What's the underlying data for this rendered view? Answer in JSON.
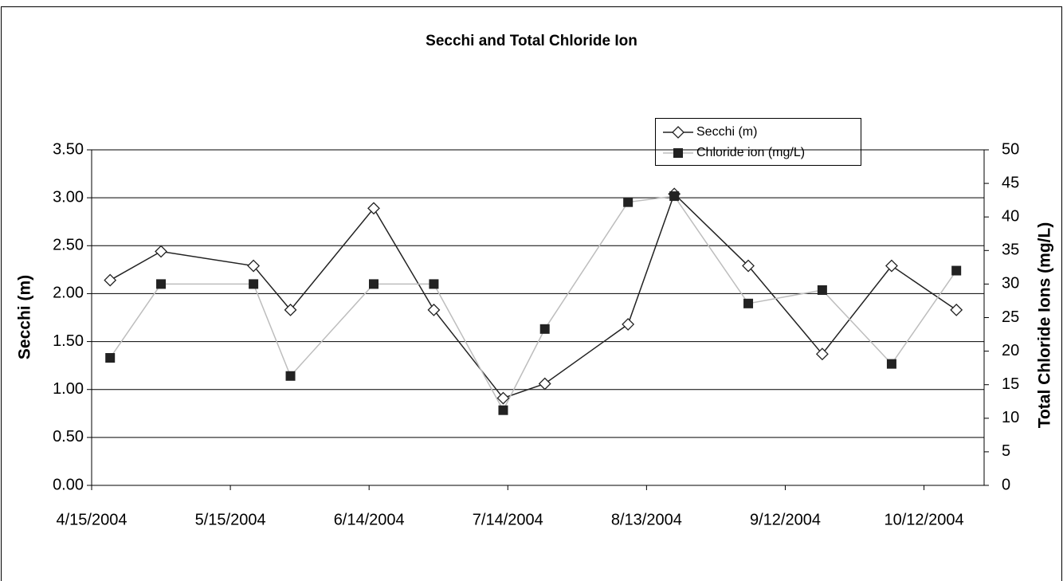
{
  "chart_data": {
    "type": "line",
    "title": "Secchi and Total Chloride Ion",
    "y_label": "Secchi (m)",
    "y2_label": "Total Chloride Ions (mg/L)",
    "x": [
      "2004-04-19",
      "2004-04-30",
      "2004-05-20",
      "2004-05-28",
      "2004-06-15",
      "2004-06-28",
      "2004-07-13",
      "2004-07-22",
      "2004-08-09",
      "2004-08-19",
      "2004-09-04",
      "2004-09-20",
      "2004-10-05",
      "2004-10-19"
    ],
    "series": [
      {
        "name": "Secchi (m)",
        "color": "#222222",
        "marker": "diamond",
        "marker_color": "#ffffff",
        "values": [
          2.14,
          2.44,
          2.29,
          1.83,
          2.89,
          1.83,
          0.91,
          1.06,
          1.68,
          3.04,
          2.29,
          1.37,
          2.29,
          1.83
        ]
      },
      {
        "name": "Chloride ion (mg/L)",
        "color": "#bdbdbd",
        "marker": "square",
        "marker_color": "#222222",
        "axis": "y2",
        "values": [
          19,
          30,
          30,
          16.3,
          30,
          30,
          11.2,
          23.3,
          42.2,
          43.1,
          27.1,
          29.1,
          18.1,
          32
        ]
      }
    ],
    "xlim": [
      "2004-04-15",
      "2004-10-25"
    ],
    "xticks": [
      {
        "value": "2004-04-15",
        "label": "4/15/2004"
      },
      {
        "value": "2004-05-15",
        "label": "5/15/2004"
      },
      {
        "value": "2004-06-14",
        "label": "6/14/2004"
      },
      {
        "value": "2004-07-14",
        "label": "7/14/2004"
      },
      {
        "value": "2004-08-13",
        "label": "8/13/2004"
      },
      {
        "value": "2004-09-12",
        "label": "9/12/2004"
      },
      {
        "value": "2004-10-12",
        "label": "10/12/2004"
      }
    ],
    "ylim": [
      0,
      3.5
    ],
    "yticks": [
      {
        "value": 0,
        "label": "0.00"
      },
      {
        "value": 0.5,
        "label": "0.50"
      },
      {
        "value": 1,
        "label": "1.00"
      },
      {
        "value": 1.5,
        "label": "1.50"
      },
      {
        "value": 2,
        "label": "2.00"
      },
      {
        "value": 2.5,
        "label": "2.50"
      },
      {
        "value": 3,
        "label": "3.00"
      },
      {
        "value": 3.5,
        "label": "3.50"
      }
    ],
    "y2lim": [
      0,
      50
    ],
    "y2ticks": [
      0,
      5,
      10,
      15,
      20,
      25,
      30,
      35,
      40,
      45,
      50
    ],
    "grid": true,
    "legend": "top-right"
  }
}
